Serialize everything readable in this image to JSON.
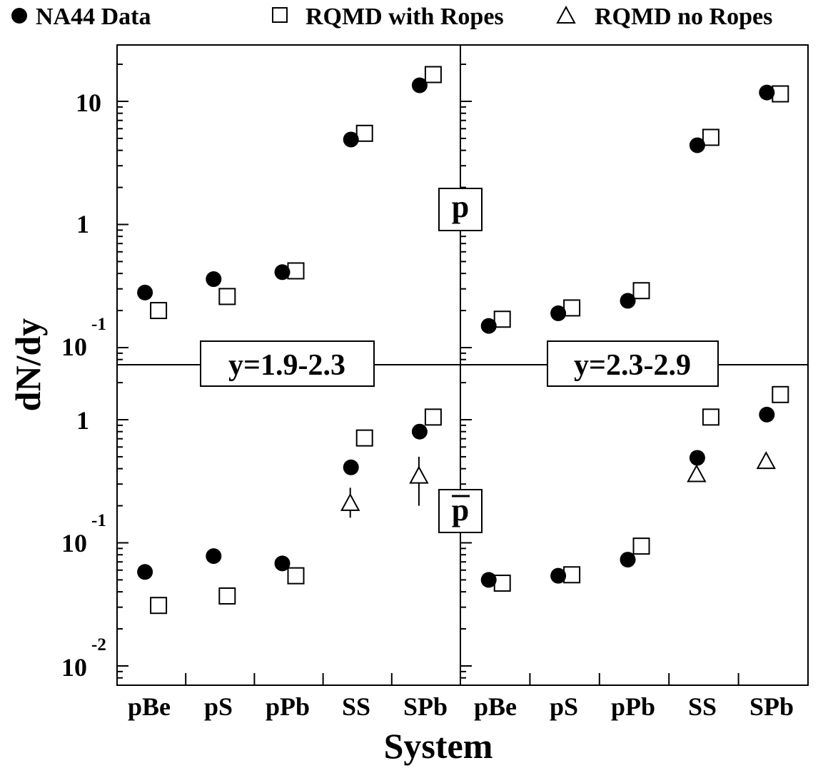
{
  "legend": {
    "items": [
      {
        "marker": "filled-circle",
        "label": "NA44 Data"
      },
      {
        "marker": "open-square",
        "label": "RQMD with Ropes"
      },
      {
        "marker": "open-triangle",
        "label": "RQMD no Ropes"
      }
    ]
  },
  "chart_data": {
    "type": "scatter",
    "scale": "log",
    "xlabel": "System",
    "ylabel": "dN/dy",
    "categories": [
      "pBe",
      "pS",
      "pPb",
      "SS",
      "SPb"
    ],
    "y_ticks": [
      {
        "base": "10",
        "exp": ""
      },
      {
        "base": "1",
        "exp": ""
      },
      {
        "base": "10",
        "exp": "-1"
      },
      {
        "base": "1",
        "exp": ""
      },
      {
        "base": "10",
        "exp": "-1"
      },
      {
        "base": "10",
        "exp": "-2"
      }
    ],
    "particle_labels": {
      "proton": "p",
      "antiproton": "p"
    },
    "panels": [
      {
        "rapidity_label": "y=1.9-2.3",
        "proton": {
          "ylim": [
            0.05,
            25
          ],
          "NA44 Data": [
            0.28,
            0.36,
            0.41,
            4.9,
            13.5
          ],
          "RQMD with Ropes": [
            0.2,
            0.26,
            0.42,
            5.5,
            16.5
          ]
        },
        "antiproton": {
          "ylim": [
            0.007,
            2.5
          ],
          "NA44 Data": [
            0.058,
            0.078,
            0.068,
            0.41,
            0.8
          ],
          "RQMD with Ropes": [
            0.031,
            0.037,
            0.054,
            0.71,
            1.05
          ],
          "RQMD no Ropes": [
            null,
            null,
            null,
            0.21,
            0.35
          ],
          "RQMD no Ropes error": [
            null,
            null,
            null,
            [
              0.16,
              0.28
            ],
            [
              0.2,
              0.5
            ]
          ]
        }
      },
      {
        "rapidity_label": "y=2.3-2.9",
        "proton": {
          "ylim": [
            0.05,
            25
          ],
          "NA44 Data": [
            0.15,
            0.19,
            0.24,
            4.4,
            11.8
          ],
          "RQMD with Ropes": [
            0.17,
            0.21,
            0.29,
            5.1,
            11.5
          ]
        },
        "antiproton": {
          "ylim": [
            0.007,
            2.5
          ],
          "NA44 Data": [
            0.05,
            0.054,
            0.073,
            0.49,
            1.1
          ],
          "RQMD with Ropes": [
            0.047,
            0.055,
            0.094,
            1.05,
            1.6
          ],
          "RQMD no Ropes": [
            null,
            null,
            null,
            0.36,
            0.46
          ]
        }
      }
    ],
    "grid": false,
    "legend_position": "top"
  }
}
